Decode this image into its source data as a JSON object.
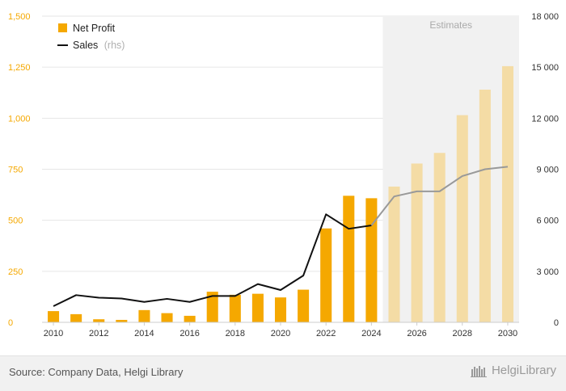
{
  "chart_data": {
    "type": "bar",
    "x": [
      2010,
      2011,
      2012,
      2013,
      2014,
      2015,
      2016,
      2017,
      2018,
      2019,
      2020,
      2021,
      2022,
      2023,
      2024,
      2025,
      2026,
      2027,
      2028,
      2029,
      2030
    ],
    "x_tick_labels": [
      "2010",
      "2012",
      "2014",
      "2016",
      "2018",
      "2020",
      "2022",
      "2024",
      "2026",
      "2028",
      "2030"
    ],
    "series": [
      {
        "name": "Net Profit",
        "type": "bar",
        "axis": "left",
        "values": [
          55,
          40,
          15,
          12,
          60,
          45,
          32,
          150,
          135,
          140,
          122,
          160,
          460,
          620,
          608,
          665,
          778,
          830,
          1015,
          1140,
          1255
        ],
        "color": "#f5a800",
        "estimate_color": "#f4dca5"
      },
      {
        "name": "Sales",
        "name_suffix": "(rhs)",
        "type": "line",
        "axis": "right",
        "values": [
          950,
          1600,
          1450,
          1400,
          1200,
          1380,
          1200,
          1550,
          1550,
          2250,
          1900,
          2750,
          6350,
          5500,
          5700,
          7400,
          7700,
          7700,
          8600,
          9000,
          9150
        ],
        "color": "#111111",
        "estimate_color": "#999999"
      }
    ],
    "y_left": {
      "ylim": [
        0,
        1500
      ],
      "ticks": [
        0,
        250,
        500,
        750,
        1000,
        1250,
        1500
      ],
      "tick_labels": [
        "0",
        "250",
        "500",
        "750",
        "1,000",
        "1,250",
        "1,500"
      ],
      "color": "#f5a800"
    },
    "y_right": {
      "ylim": [
        0,
        18000
      ],
      "ticks": [
        0,
        3000,
        6000,
        9000,
        12000,
        15000,
        18000
      ],
      "tick_labels": [
        "0",
        "3 000",
        "6 000",
        "9 000",
        "12 000",
        "15 000",
        "18 000"
      ],
      "color": "#333333"
    },
    "estimates": {
      "label": "Estimates",
      "from_year": 2025
    },
    "grid": true,
    "legend_placement": "top-left"
  },
  "footer": {
    "source": "Source: Company Data, Helgi Library",
    "logo_text": "HelgiLibrary"
  }
}
